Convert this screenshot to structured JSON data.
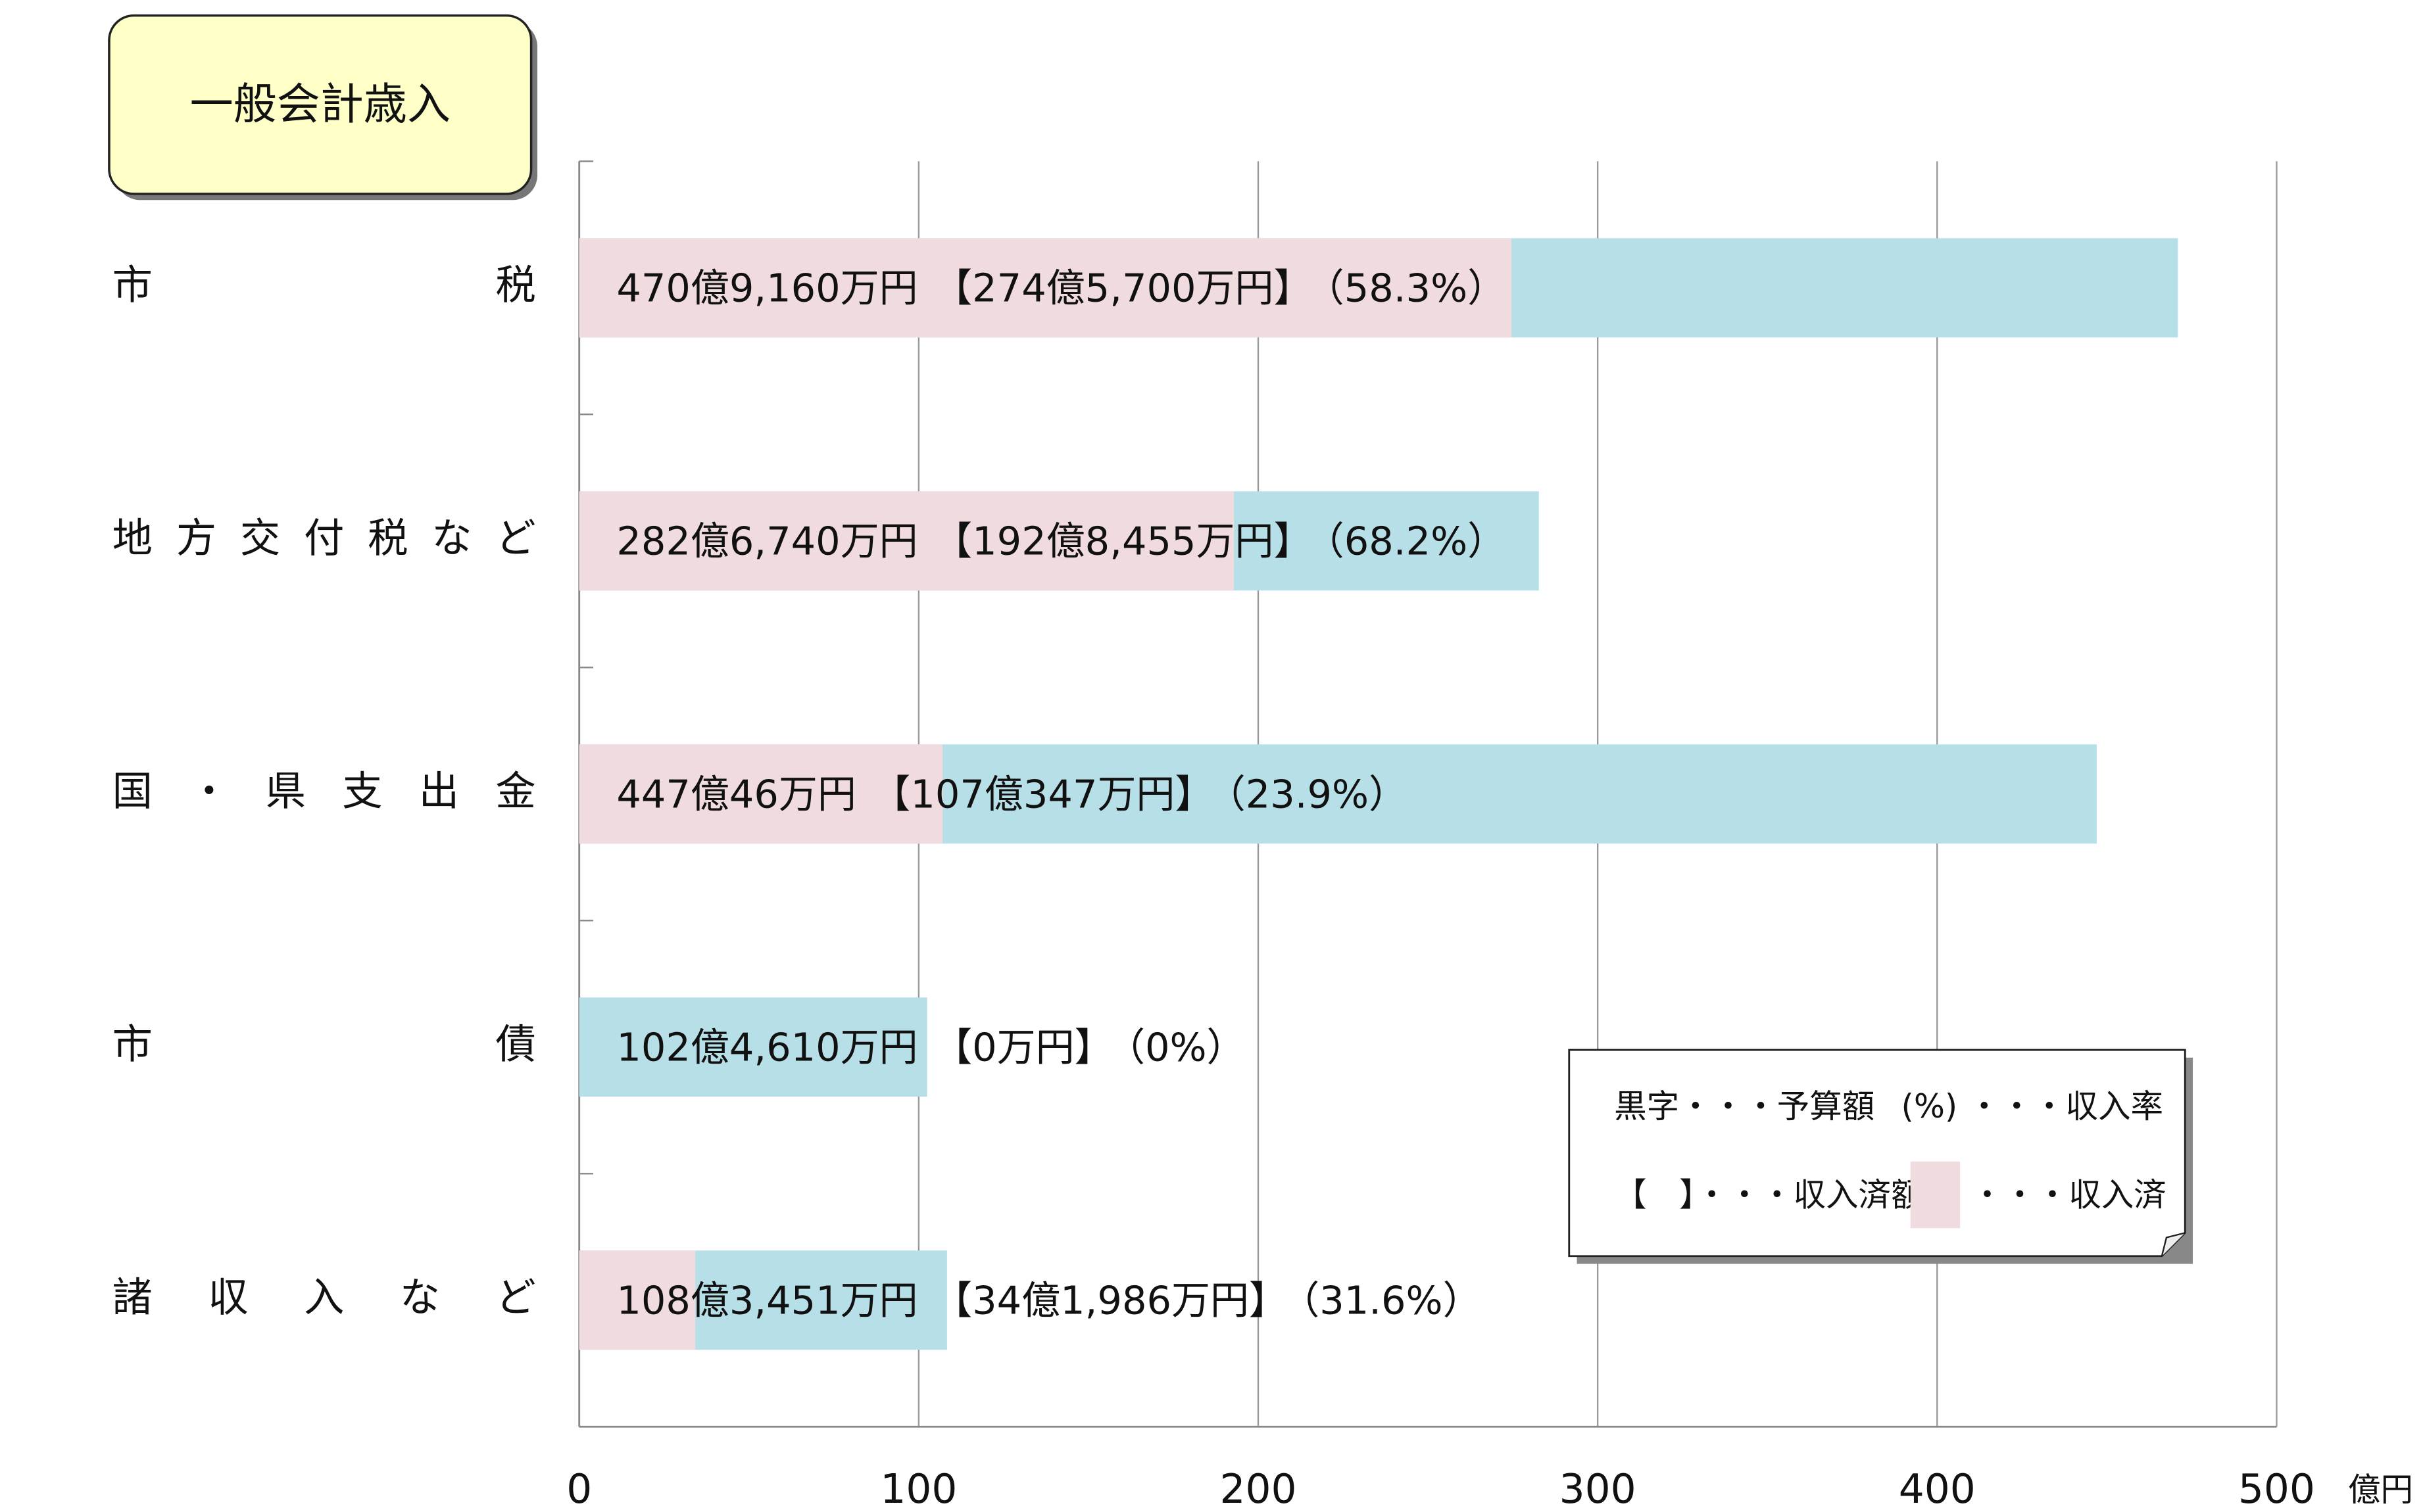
{
  "chart_data": {
    "type": "bar",
    "orientation": "horizontal",
    "title": "一般会計歳入",
    "categories": [
      "市税",
      "地方交付税など",
      "国・県支出金",
      "市債",
      "諸収入など"
    ],
    "series": [
      {
        "color": "#b7dfe8",
        "values": [
          470.916,
          282.674,
          447.0046,
          102.461,
          108.3451
        ],
        "value_labels": [
          "470億9,160万円",
          "282億6,740万円",
          "447億46万円",
          "102億4,610万円",
          "108億3,451万円"
        ]
      },
      {
        "color": "#f0dcdf",
        "values": [
          274.57,
          192.8455,
          107.0347,
          0,
          34.1986
        ],
        "value_labels": [
          "【274億5,700万円】",
          "【192億8,455万円】",
          "【107億347万円】",
          "【0万円】",
          "【34億1,986万円】"
        ]
      }
    ],
    "rates": [
      58.3,
      68.2,
      23.9,
      0,
      31.6
    ],
    "rate_labels": [
      "（58.3%）",
      "（68.2%）",
      "（23.9%）",
      "（0%）",
      "（31.6%）"
    ],
    "xlim": [
      0,
      500
    ],
    "xticks": [
      0,
      100,
      200,
      300,
      400,
      500
    ],
    "x_unit": "億円",
    "grid": true,
    "legend": {
      "position": "lower right",
      "items": [
        "黒字・・・予算額",
        "(%) ・・・収入率",
        "【　】・・・収入済額",
        "・・・収入済"
      ]
    }
  }
}
